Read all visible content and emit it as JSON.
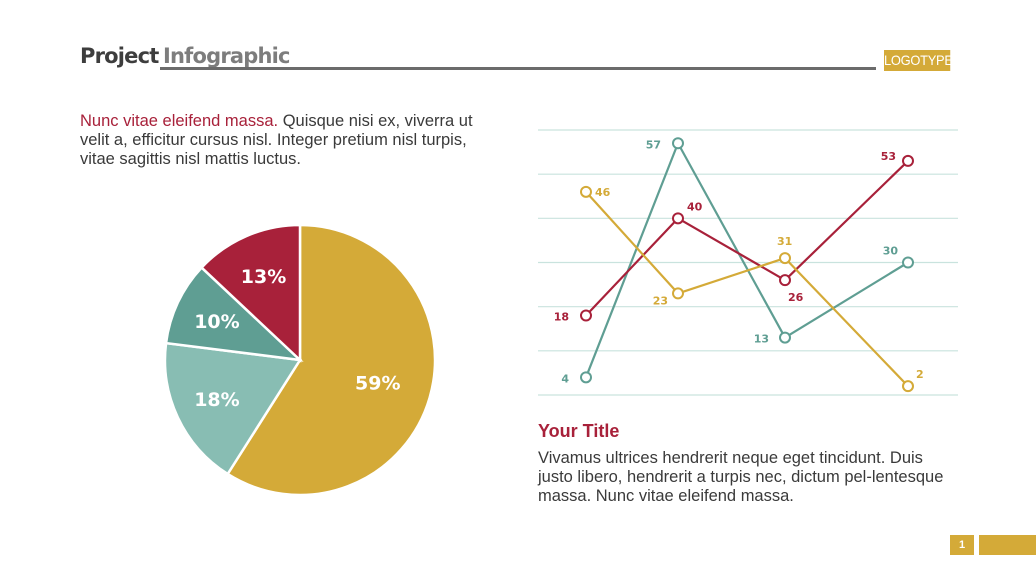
{
  "header": {
    "title_part1": "Project",
    "title_part2": "Infographic",
    "logotype": "LOGOTYPE"
  },
  "intro": {
    "accent": "Nunc vitae eleifend massa.",
    "body": " Quisque nisi ex, viverra ut velit a, efficitur cursus nisl. Integer pretium nisl turpis, vitae sagittis nisl mattis luctus."
  },
  "section": {
    "title": "Your Title",
    "body": "Vivamus ultrices hendrerit neque eget tincidunt. Duis justo libero, hendrerit a turpis nec, dictum pel-lentesque massa. Nunc vitae eleifend massa."
  },
  "footer": {
    "page_number": "1"
  },
  "colors": {
    "gold": "#d4aa38",
    "crimson": "#a8213a",
    "teal": "#5f9e93",
    "light_teal": "#88bdb3",
    "grid": "#c9e3de"
  },
  "chart_data": [
    {
      "type": "pie",
      "slices": [
        {
          "label": "59%",
          "value": 59,
          "color": "#d4aa38"
        },
        {
          "label": "18%",
          "value": 18,
          "color": "#88bdb3"
        },
        {
          "label": "10%",
          "value": 10,
          "color": "#5f9e93"
        },
        {
          "label": "13%",
          "value": 13,
          "color": "#a8213a"
        }
      ]
    },
    {
      "type": "line",
      "x": [
        1,
        2,
        3,
        4
      ],
      "ylim": [
        0,
        60
      ],
      "grid": true,
      "series": [
        {
          "color": "#5f9e93",
          "values": [
            4,
            57,
            13,
            30
          ]
        },
        {
          "color": "#a8213a",
          "values": [
            18,
            40,
            26,
            53
          ]
        },
        {
          "color": "#d4aa38",
          "values": [
            46,
            23,
            31,
            2
          ]
        }
      ]
    }
  ]
}
